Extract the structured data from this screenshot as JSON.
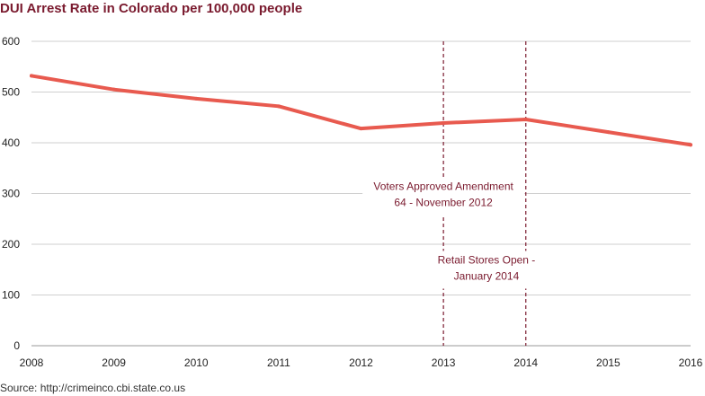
{
  "title": "DUI Arrest Rate in Colorado per 100,000 people",
  "source": "Source: http://crimeinco.cbi.state.co.us",
  "colors": {
    "title": "#7a1a2e",
    "line": "#e85a4f",
    "annotation": "#7a1a2e",
    "grid": "#cfcfcf",
    "axis_text": "#222222",
    "source_text": "#333333"
  },
  "chart_data": {
    "type": "line",
    "title": "DUI Arrest Rate in Colorado per 100,000 people",
    "xlabel": "",
    "ylabel": "",
    "x": [
      2008,
      2009,
      2010,
      2011,
      2012,
      2013,
      2014,
      2015,
      2016
    ],
    "series": [
      {
        "values": [
          532,
          505,
          487,
          472,
          428,
          439,
          446,
          421,
          396
        ]
      }
    ],
    "xlim": [
      2008,
      2016
    ],
    "ylim": [
      0,
      600
    ],
    "yticks": [
      0,
      100,
      200,
      300,
      400,
      500,
      600
    ],
    "xticks": [
      2008,
      2009,
      2010,
      2011,
      2012,
      2013,
      2014,
      2015,
      2016
    ],
    "grid": "horizontal",
    "annotations": [
      {
        "x": 2013,
        "lines": [
          "Voters Approved Amendment",
          "64 - November 2012"
        ],
        "label_y": 300
      },
      {
        "x": 2014,
        "lines": [
          "Retail Stores Open -",
          "January 2014"
        ],
        "label_y": 155
      }
    ]
  }
}
